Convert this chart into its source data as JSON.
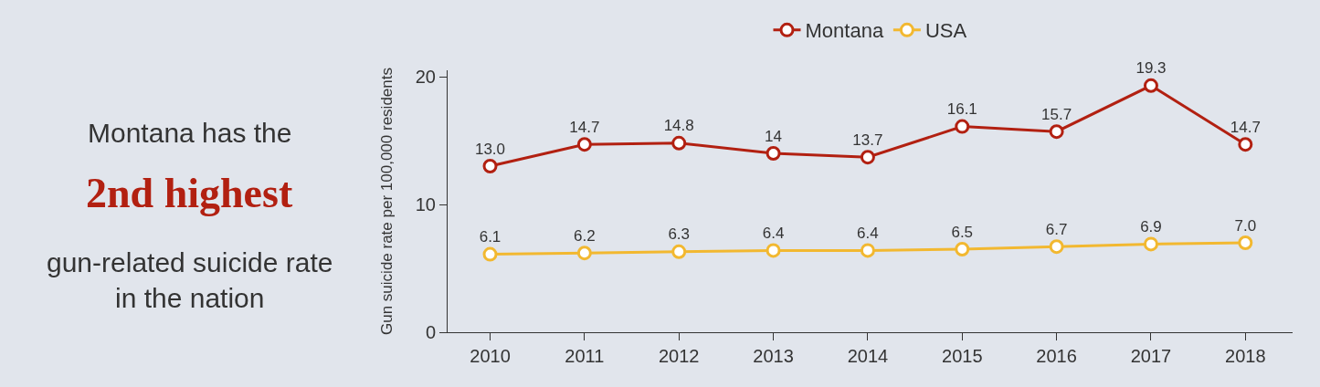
{
  "chart_data": {
    "type": "line",
    "ylabel": "Gun suicide rate per 100,000 residents",
    "annotations": [
      "Montana has the",
      "2nd highest",
      "gun-related suicide rate\nin the nation"
    ],
    "categories": [
      "2010",
      "2011",
      "2012",
      "2013",
      "2014",
      "2015",
      "2016",
      "2017",
      "2018"
    ],
    "series": [
      {
        "name": "Montana",
        "color": "#b22011",
        "values": [
          13.0,
          14.7,
          14.8,
          14,
          13.7,
          16.1,
          15.7,
          19.3,
          14.7
        ],
        "value_labels": [
          "13.0",
          "14.7",
          "14.8",
          "14",
          "13.7",
          "16.1",
          "15.7",
          "19.3",
          "14.7"
        ]
      },
      {
        "name": "USA",
        "color": "#f2b830",
        "values": [
          6.1,
          6.2,
          6.3,
          6.4,
          6.4,
          6.5,
          6.7,
          6.9,
          7.0
        ],
        "value_labels": [
          "6.1",
          "6.2",
          "6.3",
          "6.4",
          "6.4",
          "6.5",
          "6.7",
          "6.9",
          "7.0"
        ]
      }
    ],
    "ylim": [
      0,
      20.5
    ],
    "yticks": [
      0,
      10,
      20
    ],
    "grid": false,
    "legend": "top",
    "marker": "circle",
    "line_style": "solid"
  }
}
